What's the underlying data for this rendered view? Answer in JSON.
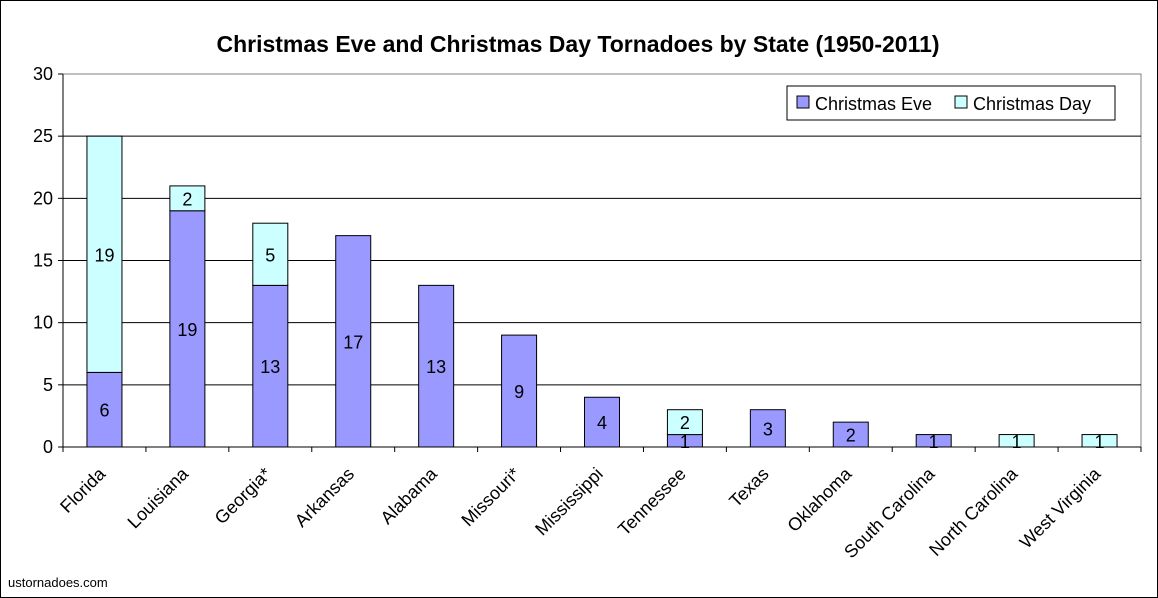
{
  "chart_data": {
    "type": "bar",
    "stacked": true,
    "title": "Christmas Eve and Christmas Day Tornadoes by State (1950-2011)",
    "xlabel": "",
    "ylabel": "",
    "ylim": [
      0,
      30
    ],
    "yticks": [
      "0",
      "5",
      "10",
      "15",
      "20",
      "25",
      "30"
    ],
    "grid": true,
    "legend_position": "top-right",
    "categories": [
      "Florida",
      "Louisiana",
      "Georgia*",
      "Arkansas",
      "Alabama",
      "Missouri*",
      "Mississippi",
      "Tennessee",
      "Texas",
      "Oklahoma",
      "South Carolina",
      "North Carolina",
      "West Virginia"
    ],
    "series": [
      {
        "name": "Christmas Eve",
        "color": "#9999ff",
        "values": [
          6,
          19,
          13,
          17,
          13,
          9,
          4,
          1,
          3,
          2,
          1,
          0,
          0
        ]
      },
      {
        "name": "Christmas Day",
        "color": "#ccffff",
        "values": [
          19,
          2,
          5,
          0,
          0,
          0,
          0,
          2,
          0,
          0,
          0,
          1,
          1
        ]
      }
    ]
  },
  "credit": "ustornadoes.com"
}
